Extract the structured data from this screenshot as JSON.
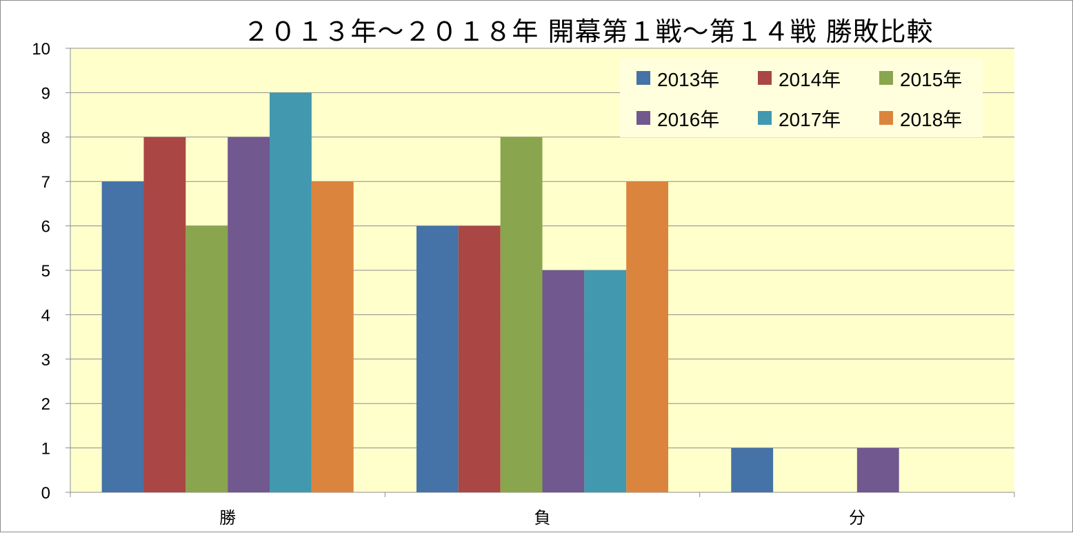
{
  "chart_data": {
    "type": "bar",
    "title": "２０１３年～２０１８年 開幕第１戦～第１４戦 勝敗比較",
    "categories": [
      "勝",
      "負",
      "分"
    ],
    "series": [
      {
        "name": "2013年",
        "color": "#4572a7",
        "values": [
          7,
          6,
          1
        ]
      },
      {
        "name": "2014年",
        "color": "#aa4643",
        "values": [
          8,
          6,
          0
        ]
      },
      {
        "name": "2015年",
        "color": "#89a54e",
        "values": [
          6,
          8,
          0
        ]
      },
      {
        "name": "2016年",
        "color": "#71588f",
        "values": [
          8,
          5,
          1
        ]
      },
      {
        "name": "2017年",
        "color": "#4198af",
        "values": [
          9,
          5,
          0
        ]
      },
      {
        "name": "2018年",
        "color": "#db843d",
        "values": [
          7,
          7,
          0
        ]
      }
    ],
    "ylim": [
      0,
      10
    ],
    "yticks": [
      "0",
      "1",
      "2",
      "3",
      "4",
      "5",
      "6",
      "7",
      "8",
      "9",
      "10"
    ],
    "grid": true,
    "legend": "top-right",
    "plot_background": "#ffffcc"
  }
}
